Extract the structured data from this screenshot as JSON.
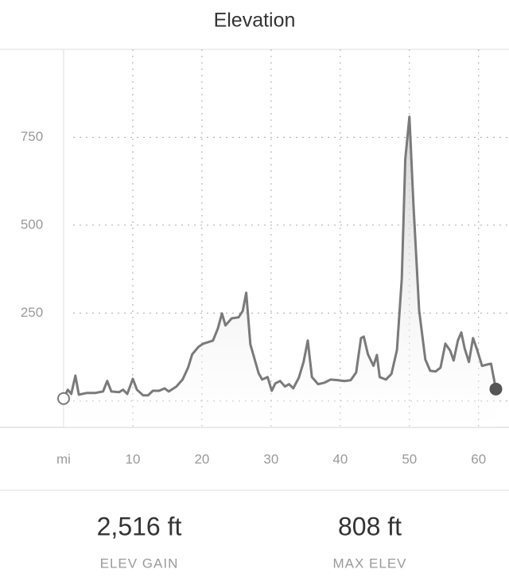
{
  "header": {
    "title": "Elevation"
  },
  "chart_data": {
    "type": "area",
    "x": [
      0,
      0.6,
      1.1,
      1.7,
      2.2,
      3.4,
      4.6,
      5.7,
      6.3,
      6.9,
      8.0,
      8.6,
      9.2,
      10,
      10.6,
      11.5,
      12.2,
      12.9,
      13.8,
      14.6,
      15.2,
      16.3,
      17.2,
      18.0,
      18.6,
      19.5,
      20.2,
      21.6,
      22.3,
      22.9,
      23.4,
      24.3,
      25.3,
      25.9,
      26.4,
      27.0,
      28.2,
      28.7,
      29.5,
      30.1,
      30.6,
      31.3,
      32.0,
      32.6,
      33.2,
      34.0,
      34.7,
      35.3,
      35.9,
      36.8,
      37.7,
      38.6,
      39.7,
      40.6,
      41.5,
      42.3,
      43.0,
      43.4,
      44.0,
      44.8,
      45.3,
      45.7,
      46.6,
      47.4,
      48.2,
      48.9,
      49.4,
      50,
      50.6,
      51.4,
      52.3,
      53.0,
      53.8,
      54.5,
      55.2,
      55.9,
      56.4,
      57.0,
      57.5,
      58.0,
      58.6,
      59.2,
      59.8,
      60.5,
      61.3,
      61.8,
      62.5
    ],
    "values": [
      7,
      32,
      20,
      72,
      18,
      23,
      23,
      27,
      57,
      27,
      25,
      32,
      20,
      63,
      32,
      16,
      16,
      29,
      29,
      36,
      27,
      41,
      61,
      95,
      133,
      154,
      163,
      172,
      206,
      249,
      215,
      235,
      238,
      256,
      308,
      161,
      79,
      61,
      68,
      29,
      50,
      57,
      41,
      48,
      36,
      66,
      111,
      172,
      68,
      48,
      52,
      61,
      59,
      57,
      59,
      81,
      179,
      183,
      133,
      100,
      131,
      68,
      61,
      77,
      145,
      348,
      688,
      808,
      552,
      258,
      118,
      86,
      84,
      95,
      163,
      143,
      115,
      172,
      195,
      149,
      111,
      179,
      145,
      100,
      104,
      106,
      34
    ],
    "color": "#7a7a7a",
    "xlim": [
      -9.2,
      64.4
    ],
    "ylim": [
      -75,
      1000
    ],
    "xticks": [
      {
        "value": 0,
        "label": "mi"
      },
      10,
      20,
      30,
      40,
      50,
      60
    ],
    "yticks": [
      {
        "value": 0,
        "label": null
      },
      250,
      500,
      750
    ],
    "grid": true
  },
  "stats": [
    {
      "value": "2,516 ft",
      "label": "ELEV GAIN"
    },
    {
      "value": "808 ft",
      "label": "MAX ELEV"
    }
  ]
}
